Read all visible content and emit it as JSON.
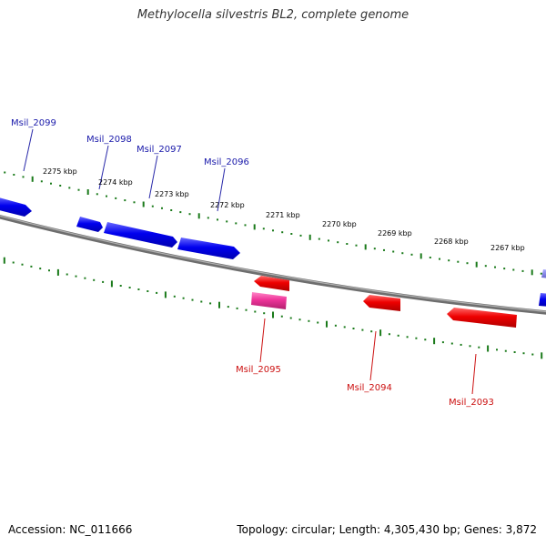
{
  "title": "Methylocella silvestris BL2, complete genome",
  "footer": {
    "accession": "Accession: NC_011666",
    "summary": "Topology: circular; Length: 4,305,430 bp; Genes: 3,872"
  },
  "colors": {
    "forward_strand": "#0000ee",
    "reverse_strand": "#ee0000",
    "pseudogene": "#ee3399",
    "backbone": "#808080",
    "ticks": "#1a7a1a",
    "forward_label": "#1a1aaa",
    "reverse_label": "#cc1111"
  },
  "scale_ticks": [
    "2275 kbp",
    "2274 kbp",
    "2273 kbp",
    "2272 kbp",
    "2271 kbp",
    "2270 kbp",
    "2269 kbp",
    "2268 kbp",
    "2267 kbp"
  ],
  "genes": [
    {
      "label": "Msil_2099",
      "strand": "forward"
    },
    {
      "label": "Msil_2098",
      "strand": "forward"
    },
    {
      "label": "Msil_2097",
      "strand": "forward"
    },
    {
      "label": "Msil_2096",
      "strand": "forward"
    },
    {
      "label": "Msil_2095",
      "strand": "reverse"
    },
    {
      "label": "Msil_2094",
      "strand": "reverse"
    },
    {
      "label": "Msil_2093",
      "strand": "reverse"
    }
  ]
}
